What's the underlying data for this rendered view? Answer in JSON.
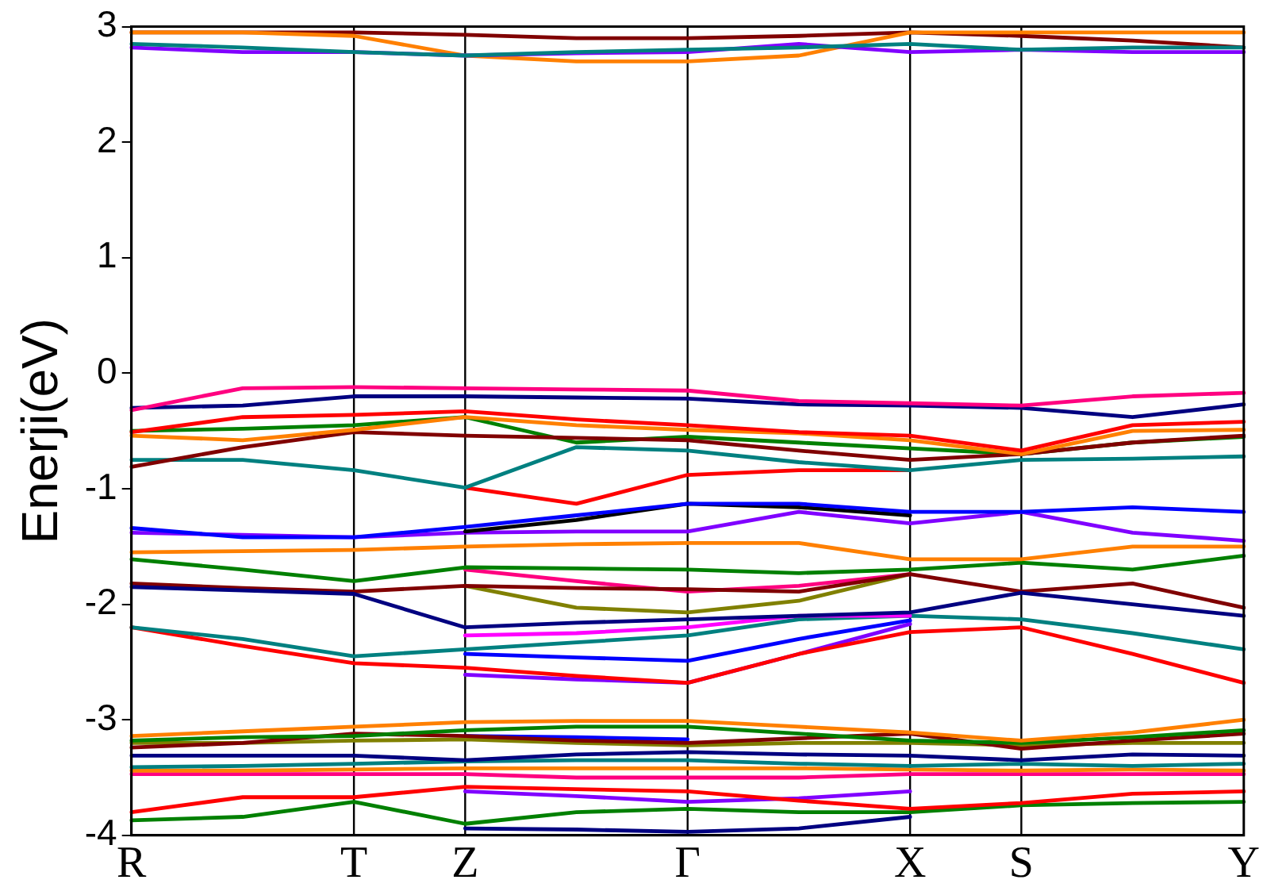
{
  "chart_data": {
    "type": "line",
    "ylabel": "Enerji(eV)",
    "ylim": [
      -4,
      3
    ],
    "categories": [
      "R",
      null,
      "T",
      "Z",
      null,
      "Γ",
      null,
      "X",
      "S",
      null,
      "Y"
    ],
    "yticks": [
      -4,
      -3,
      -2,
      -1,
      0,
      1,
      2,
      3
    ],
    "marker": "none",
    "line_style": "solid",
    "ref_lines": [
      {
        "axis": "x",
        "value": "T",
        "color": "#000000"
      },
      {
        "axis": "x",
        "value": "Z",
        "color": "#000000"
      },
      {
        "axis": "x",
        "value": "Γ",
        "color": "#000000"
      },
      {
        "axis": "x",
        "value": "X",
        "color": "#000000"
      },
      {
        "axis": "x",
        "value": "S",
        "color": "#000000"
      }
    ],
    "series": [
      {
        "color": "#008080",
        "values": [
          2.85,
          2.82,
          2.78,
          2.75,
          2.78,
          2.8,
          2.82,
          2.85,
          2.8,
          2.82,
          2.82
        ]
      },
      {
        "color": "#8000ff",
        "values": [
          2.82,
          2.78,
          2.78,
          2.75,
          2.77,
          2.78,
          2.85,
          2.78,
          2.8,
          2.78,
          2.78
        ]
      },
      {
        "color": "#ff8000",
        "values": [
          2.95,
          2.95,
          2.92,
          2.75,
          2.7,
          2.7,
          2.75,
          2.95,
          2.95,
          2.95,
          2.95
        ]
      },
      {
        "color": "#800000",
        "values": [
          2.95,
          2.95,
          2.95,
          2.93,
          2.9,
          2.9,
          2.92,
          2.95,
          2.92,
          2.88,
          2.82
        ]
      },
      {
        "color": "#ff0080",
        "values": [
          -0.32,
          -0.13,
          -0.12,
          -0.13,
          -0.14,
          -0.15,
          -0.24,
          -0.26,
          -0.28,
          -0.2,
          -0.17
        ]
      },
      {
        "color": "#000080",
        "values": [
          -0.3,
          -0.28,
          -0.2,
          -0.2,
          -0.21,
          -0.22,
          -0.27,
          -0.28,
          -0.3,
          -0.38,
          -0.27
        ]
      },
      {
        "color": "#ff0000",
        "values": [
          -0.51,
          -0.38,
          -0.36,
          -0.33,
          -0.4,
          -0.45,
          -0.51,
          -0.54,
          -0.67,
          -0.45,
          -0.42
        ]
      },
      {
        "color": "#ff8000",
        "values": [
          -0.54,
          -0.58,
          -0.49,
          -0.38,
          -0.45,
          -0.49,
          -0.52,
          -0.58,
          -0.7,
          -0.5,
          -0.49
        ]
      },
      {
        "color": "#800000",
        "values": [
          -0.81,
          -0.64,
          -0.51,
          -0.54,
          -0.56,
          -0.58,
          -0.67,
          -0.75,
          -0.7,
          -0.6,
          -0.54
        ]
      },
      {
        "color": "#008000",
        "values": [
          -0.5,
          -0.48,
          -0.45,
          -0.38,
          -0.6,
          -0.55,
          -0.6,
          -0.65,
          -0.7,
          -0.6,
          -0.55
        ]
      },
      {
        "color": "#008080",
        "values": [
          -0.75,
          -0.75,
          -0.84,
          -0.99,
          -0.64,
          -0.67,
          -0.77,
          -0.84,
          -0.75,
          -0.74,
          -0.72
        ]
      },
      {
        "color": "#ff0000",
        "values": [
          null,
          null,
          null,
          -0.99,
          -1.13,
          -0.88,
          -0.84,
          -0.84,
          null,
          null,
          null
        ]
      },
      {
        "color": "#0000ff",
        "values": [
          -1.34,
          -1.42,
          -1.42,
          -1.33,
          -1.23,
          -1.13,
          -1.13,
          -1.2,
          -1.2,
          -1.16,
          -1.2
        ]
      },
      {
        "color": "#000000",
        "values": [
          null,
          null,
          null,
          -1.37,
          -1.27,
          -1.13,
          -1.16,
          -1.23,
          null,
          null,
          null
        ]
      },
      {
        "color": "#8000ff",
        "values": [
          -1.38,
          -1.4,
          -1.42,
          -1.38,
          -1.37,
          -1.37,
          -1.2,
          -1.3,
          -1.2,
          -1.38,
          -1.45
        ]
      },
      {
        "color": "#ff8000",
        "values": [
          -1.55,
          -1.54,
          -1.53,
          -1.5,
          -1.48,
          -1.47,
          -1.47,
          -1.61,
          -1.61,
          -1.5,
          -1.5
        ]
      },
      {
        "color": "#008000",
        "values": [
          -1.61,
          -1.7,
          -1.8,
          -1.68,
          -1.69,
          -1.7,
          -1.73,
          -1.7,
          -1.64,
          -1.7,
          -1.58
        ]
      },
      {
        "color": "#000080",
        "values": [
          -1.85,
          -1.88,
          -1.91,
          -2.2,
          -2.16,
          -2.13,
          -2.1,
          -2.07,
          -1.9,
          -2,
          -2.1
        ]
      },
      {
        "color": "#800000",
        "values": [
          -1.82,
          -1.86,
          -1.89,
          -1.84,
          -1.86,
          -1.87,
          -1.89,
          -1.74,
          -1.89,
          -1.82,
          -2.03
        ]
      },
      {
        "color": "#ff0080",
        "values": [
          null,
          null,
          null,
          -1.7,
          -1.8,
          -1.89,
          -1.84,
          -1.74,
          null,
          null,
          null
        ]
      },
      {
        "color": "#808000",
        "values": [
          null,
          null,
          null,
          -1.84,
          -2.03,
          -2.07,
          -1.97,
          -1.74,
          null,
          null,
          null
        ]
      },
      {
        "color": "#ff00ff",
        "values": [
          null,
          null,
          null,
          -2.27,
          -2.25,
          -2.2,
          -2.1,
          -2.1,
          null,
          null,
          null
        ]
      },
      {
        "color": "#008080",
        "values": [
          -2.2,
          -2.3,
          -2.45,
          -2.39,
          -2.33,
          -2.27,
          -2.13,
          -2.1,
          -2.13,
          -2.25,
          -2.39
        ]
      },
      {
        "color": "#ff0000",
        "values": [
          -2.2,
          -2.36,
          -2.51,
          -2.55,
          -2.62,
          -2.68,
          -2.43,
          -2.24,
          -2.2,
          -2.43,
          -2.68
        ]
      },
      {
        "color": "#0000ff",
        "values": [
          null,
          null,
          null,
          -2.43,
          -2.46,
          -2.49,
          -2.3,
          -2.14,
          null,
          null,
          null
        ]
      },
      {
        "color": "#8000ff",
        "values": [
          null,
          null,
          null,
          -2.61,
          -2.65,
          -2.68,
          -2.43,
          -2.17,
          null,
          null,
          null
        ]
      },
      {
        "color": "#ff8000",
        "values": [
          -3.14,
          -3.1,
          -3.06,
          -3.02,
          -3.01,
          -3.01,
          -3.06,
          -3.11,
          -3.18,
          -3.11,
          -3
        ]
      },
      {
        "color": "#008000",
        "values": [
          -3.18,
          -3.15,
          -3.14,
          -3.09,
          -3.06,
          -3.06,
          -3.12,
          -3.18,
          -3.2,
          -3.15,
          -3.09
        ]
      },
      {
        "color": "#800000",
        "values": [
          -3.24,
          -3.2,
          -3.12,
          -3.14,
          -3.18,
          -3.2,
          -3.16,
          -3.12,
          -3.25,
          -3.18,
          -3.12
        ]
      },
      {
        "color": "#808000",
        "values": [
          -3.2,
          -3.2,
          -3.18,
          -3.17,
          -3.2,
          -3.22,
          -3.2,
          -3.2,
          -3.22,
          -3.2,
          -3.2
        ]
      },
      {
        "color": "#000080",
        "values": [
          -3.31,
          -3.31,
          -3.31,
          -3.35,
          -3.3,
          -3.28,
          -3.3,
          -3.31,
          -3.35,
          -3.3,
          -3.31
        ]
      },
      {
        "color": "#0000ff",
        "values": [
          null,
          null,
          null,
          -3.14,
          -3.15,
          -3.17,
          null,
          null,
          null,
          null,
          null
        ]
      },
      {
        "color": "#008080",
        "values": [
          -3.41,
          -3.4,
          -3.38,
          -3.36,
          -3.35,
          -3.35,
          -3.38,
          -3.4,
          -3.38,
          -3.4,
          -3.38
        ]
      },
      {
        "color": "#ff8000",
        "values": [
          -3.44,
          -3.44,
          -3.43,
          -3.42,
          -3.42,
          -3.42,
          -3.42,
          -3.43,
          -3.44,
          -3.43,
          -3.44
        ]
      },
      {
        "color": "#ff0080",
        "values": [
          -3.47,
          -3.47,
          -3.47,
          -3.47,
          -3.5,
          -3.5,
          -3.5,
          -3.47,
          -3.47,
          -3.47,
          -3.47
        ]
      },
      {
        "color": "#ff0000",
        "values": [
          -3.8,
          -3.67,
          -3.67,
          -3.58,
          -3.6,
          -3.62,
          -3.7,
          -3.77,
          -3.72,
          -3.64,
          -3.62
        ]
      },
      {
        "color": "#008000",
        "values": [
          -3.87,
          -3.84,
          -3.71,
          -3.9,
          -3.8,
          -3.77,
          -3.8,
          -3.8,
          -3.74,
          -3.72,
          -3.71
        ]
      },
      {
        "color": "#000080",
        "values": [
          null,
          null,
          null,
          -3.94,
          -3.95,
          -3.97,
          -3.94,
          -3.84,
          null,
          null,
          null
        ]
      },
      {
        "color": "#8000ff",
        "values": [
          null,
          null,
          null,
          -3.62,
          -3.66,
          -3.71,
          -3.68,
          -3.62,
          null,
          null,
          null
        ]
      }
    ]
  }
}
